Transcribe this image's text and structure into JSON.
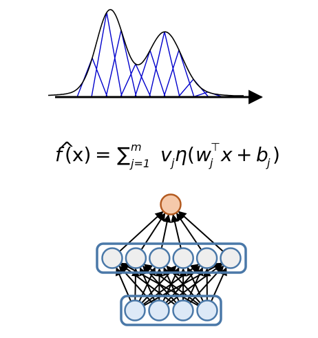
{
  "formula": {
    "f": "f",
    "hat": "^",
    "arg": "(x)",
    "equals": "=",
    "sum": "∑",
    "sum_upper": "m",
    "sum_lower": "j=1",
    "v": "v",
    "v_sub": "j",
    "eta": "η",
    "open_paren": "(",
    "w": "w",
    "w_sub": "j",
    "w_sup": "⊤",
    "x": "x",
    "plus": "+",
    "b": "b",
    "b_sub": "j",
    "close_paren": ")"
  },
  "colors": {
    "curve": "#000000",
    "bumps": "#0000cc",
    "axis": "#000000",
    "output_node_fill": "#f5c9aa",
    "output_node_stroke": "#b35a1f",
    "layer_box_stroke": "#4a78a8",
    "hidden_node_fill": "#eeeeee",
    "input_node_fill": "#dde9f7",
    "node_stroke": "#4a78a8",
    "edge": "#000000"
  },
  "network": {
    "input_nodes": 4,
    "hidden_nodes": 6,
    "output_nodes": 1
  }
}
